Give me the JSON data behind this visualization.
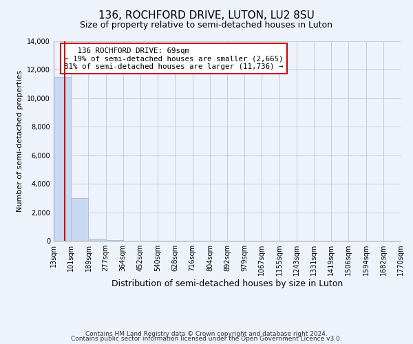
{
  "title": "136, ROCHFORD DRIVE, LUTON, LU2 8SU",
  "subtitle": "Size of property relative to semi-detached houses in Luton",
  "xlabel": "Distribution of semi-detached houses by size in Luton",
  "ylabel": "Number of semi-detached properties",
  "bin_edges": [
    13,
    101,
    189,
    277,
    364,
    452,
    540,
    628,
    716,
    804,
    892,
    979,
    1067,
    1155,
    1243,
    1331,
    1419,
    1506,
    1594,
    1682,
    1770
  ],
  "bin_heights": [
    11500,
    3000,
    150,
    50,
    20,
    10,
    5,
    3,
    2,
    2,
    1,
    1,
    1,
    1,
    1,
    1,
    1,
    1,
    1,
    1
  ],
  "bar_color": "#c8d8f0",
  "bar_edge_color": "#a8c0e0",
  "property_size": 69,
  "property_label": "136 ROCHFORD DRIVE: 69sqm",
  "pct_smaller": 19,
  "pct_larger": 81,
  "count_smaller": 2665,
  "count_larger": 11736,
  "red_line_color": "#cc0000",
  "annotation_box_color": "#ffffff",
  "annotation_box_edge_color": "#cc0000",
  "ylim": [
    0,
    14000
  ],
  "yticks": [
    0,
    2000,
    4000,
    6000,
    8000,
    10000,
    12000,
    14000
  ],
  "footnote1": "Contains HM Land Registry data © Crown copyright and database right 2024.",
  "footnote2": "Contains public sector information licensed under the Open Government Licence v3.0.",
  "bg_color": "#eef2fb",
  "grid_color": "#c0cce0"
}
